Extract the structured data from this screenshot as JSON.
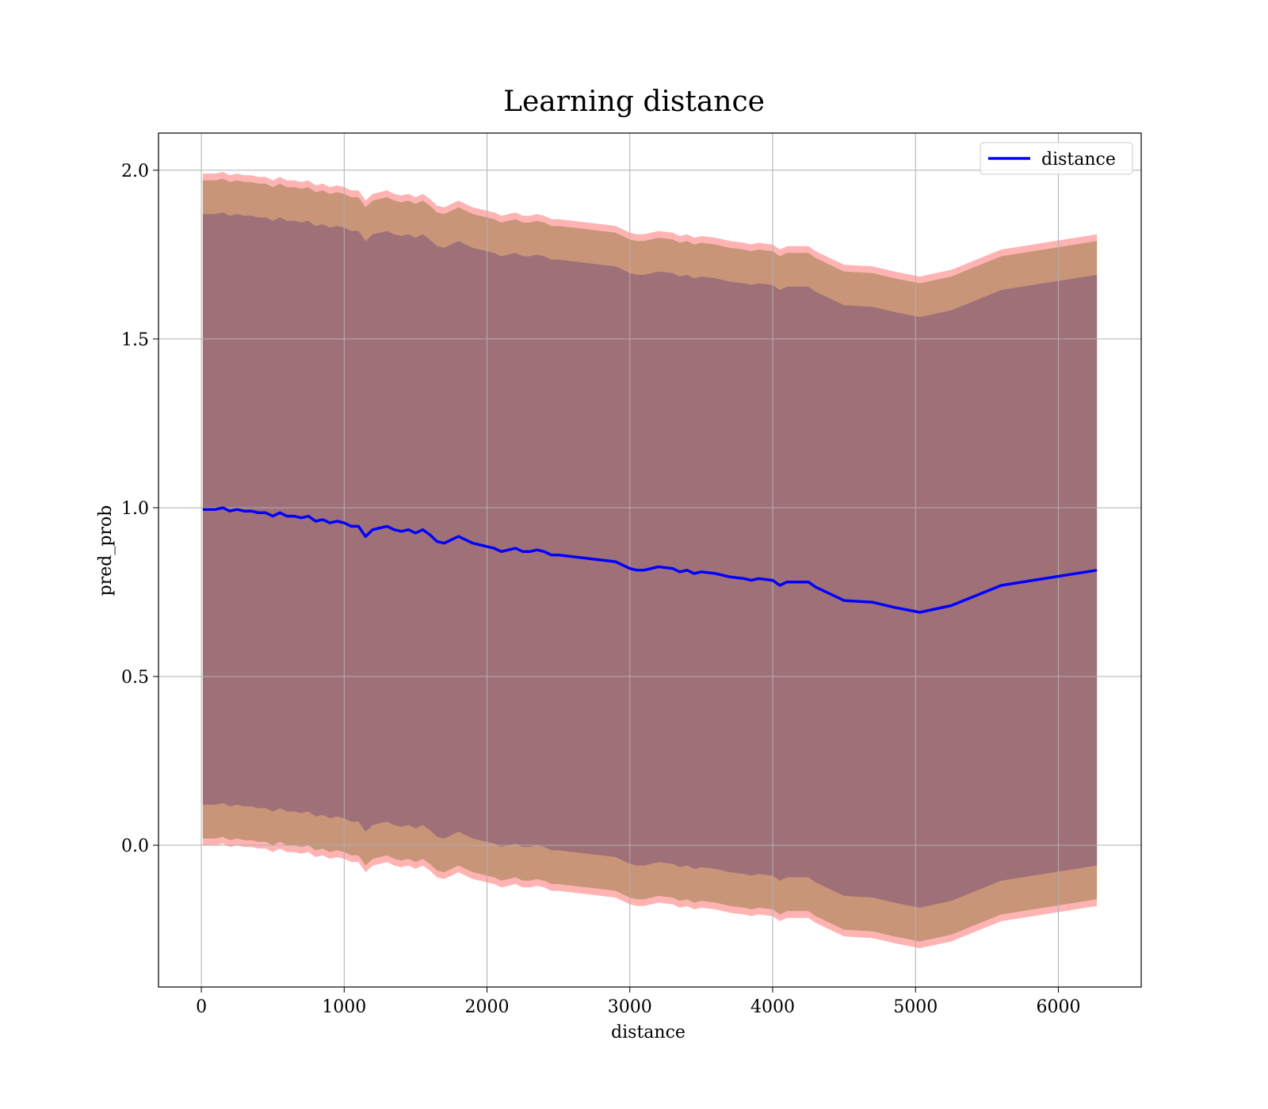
{
  "chart_data": {
    "type": "line",
    "title": "Learning distance",
    "xlabel": "distance",
    "ylabel": "pred_prob",
    "xlim": [
      -300,
      6580
    ],
    "ylim": [
      -0.42,
      2.11
    ],
    "xticks": [
      0,
      1000,
      2000,
      3000,
      4000,
      5000,
      6000
    ],
    "yticks": [
      0.0,
      0.5,
      1.0,
      1.5,
      2.0
    ],
    "xtick_labels": [
      "0",
      "1000",
      "2000",
      "3000",
      "4000",
      "5000",
      "6000"
    ],
    "ytick_labels": [
      "0.0",
      "0.5",
      "1.0",
      "1.5",
      "2.0"
    ],
    "grid": true,
    "legend": {
      "position": "top-right",
      "entries": [
        "distance"
      ]
    },
    "colors": {
      "line": "#0000ff",
      "band_outer": "#ffb3b3",
      "band_middle": "#c89579",
      "band_inner": "#a07078",
      "grid": "#b0b0b0"
    },
    "series": [
      {
        "name": "distance",
        "x": [
          10,
          100,
          150,
          200,
          250,
          300,
          350,
          400,
          450,
          500,
          550,
          600,
          650,
          700,
          750,
          800,
          850,
          900,
          950,
          1000,
          1050,
          1100,
          1150,
          1200,
          1250,
          1300,
          1350,
          1400,
          1450,
          1500,
          1550,
          1600,
          1650,
          1700,
          1750,
          1800,
          1850,
          1900,
          1950,
          2000,
          2050,
          2100,
          2150,
          2200,
          2250,
          2300,
          2350,
          2400,
          2450,
          2500,
          2600,
          2700,
          2800,
          2900,
          3000,
          3050,
          3100,
          3200,
          3300,
          3350,
          3400,
          3450,
          3500,
          3600,
          3700,
          3800,
          3850,
          3900,
          4000,
          4050,
          4100,
          4250,
          4300,
          4500,
          4700,
          4850,
          5030,
          5250,
          5600,
          6270
        ],
        "values": [
          0.995,
          0.995,
          1.0,
          0.99,
          0.995,
          0.99,
          0.99,
          0.985,
          0.985,
          0.975,
          0.985,
          0.975,
          0.975,
          0.97,
          0.975,
          0.96,
          0.965,
          0.955,
          0.96,
          0.955,
          0.945,
          0.945,
          0.915,
          0.935,
          0.94,
          0.945,
          0.935,
          0.93,
          0.935,
          0.925,
          0.935,
          0.92,
          0.9,
          0.895,
          0.905,
          0.915,
          0.905,
          0.895,
          0.89,
          0.885,
          0.88,
          0.87,
          0.875,
          0.88,
          0.87,
          0.87,
          0.875,
          0.87,
          0.86,
          0.86,
          0.855,
          0.85,
          0.845,
          0.84,
          0.82,
          0.815,
          0.815,
          0.825,
          0.82,
          0.81,
          0.815,
          0.805,
          0.81,
          0.805,
          0.795,
          0.79,
          0.785,
          0.79,
          0.785,
          0.77,
          0.78,
          0.78,
          0.765,
          0.725,
          0.72,
          0.705,
          0.69,
          0.71,
          0.77,
          0.815
        ]
      }
    ],
    "bands": [
      {
        "level": "outer",
        "offset": 0.995
      },
      {
        "level": "middle",
        "offset": 0.975
      },
      {
        "level": "inner",
        "offset": 0.875
      }
    ]
  }
}
